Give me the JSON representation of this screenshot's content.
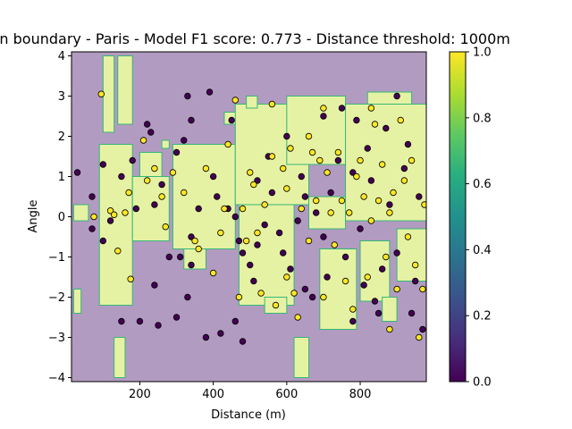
{
  "chart_data": {
    "type": "scatter",
    "title": "ion boundary - Paris - Model F1 score: 0.773 - Distance threshold: 1000m",
    "xlabel": "Distance (m)",
    "ylabel": "Angle",
    "xlim": [
      14,
      980
    ],
    "ylim": [
      -4.1,
      4.1
    ],
    "xticks": [
      200,
      400,
      600,
      800
    ],
    "yticks": [
      -4,
      -3,
      -2,
      -1,
      0,
      1,
      2,
      3,
      4
    ],
    "grid": false,
    "legend": "none",
    "colorbar": {
      "colormap": "viridis",
      "range": [
        0.0,
        1.0
      ],
      "ticks": [
        0.0,
        0.2,
        0.4,
        0.6,
        0.8,
        1.0
      ]
    },
    "colors": {
      "class0_region": "#b29bc0",
      "class1_region": "#e6f2a3",
      "boundary": "#35b779",
      "class0_point": "#440154",
      "class1_point": "#fde725"
    },
    "boundary_regions_class1": [
      [
        100,
        130,
        2.1,
        4.0
      ],
      [
        140,
        180,
        2.3,
        4.0
      ],
      [
        20,
        60,
        -0.1,
        0.3
      ],
      [
        20,
        40,
        -2.4,
        -1.8
      ],
      [
        90,
        180,
        -2.2,
        1.8
      ],
      [
        180,
        280,
        -0.6,
        1.0
      ],
      [
        200,
        260,
        1.0,
        1.6
      ],
      [
        290,
        460,
        -0.8,
        1.8
      ],
      [
        320,
        380,
        -1.3,
        -0.8
      ],
      [
        130,
        160,
        -4.0,
        -3.0
      ],
      [
        260,
        280,
        1.7,
        1.9
      ],
      [
        430,
        470,
        2.3,
        2.6
      ],
      [
        460,
        660,
        0.3,
        2.8
      ],
      [
        470,
        620,
        -2.2,
        0.3
      ],
      [
        540,
        600,
        -2.4,
        -2.0
      ],
      [
        490,
        520,
        2.7,
        3.0
      ],
      [
        600,
        760,
        1.3,
        3.0
      ],
      [
        660,
        760,
        -0.3,
        0.5
      ],
      [
        760,
        980,
        -0.1,
        2.8
      ],
      [
        820,
        940,
        2.8,
        3.1
      ],
      [
        620,
        660,
        -4.0,
        -3.0
      ],
      [
        690,
        790,
        -2.8,
        -0.8
      ],
      [
        800,
        880,
        -2.1,
        -0.6
      ],
      [
        900,
        980,
        -1.6,
        -0.3
      ],
      [
        860,
        900,
        -2.6,
        -2.0
      ]
    ],
    "points_class0": [
      [
        30,
        1.1
      ],
      [
        70,
        0.5
      ],
      [
        100,
        1.3
      ],
      [
        150,
        1.0
      ],
      [
        190,
        0.2
      ],
      [
        240,
        0.3
      ],
      [
        120,
        -0.1
      ],
      [
        70,
        -0.3
      ],
      [
        100,
        -0.6
      ],
      [
        150,
        -2.6
      ],
      [
        200,
        -2.6
      ],
      [
        250,
        -2.7
      ],
      [
        300,
        -2.5
      ],
      [
        280,
        -1.0
      ],
      [
        310,
        -1.0
      ],
      [
        330,
        -2.0
      ],
      [
        340,
        -0.5
      ],
      [
        360,
        0.2
      ],
      [
        330,
        3.0
      ],
      [
        390,
        3.1
      ],
      [
        340,
        2.4
      ],
      [
        230,
        2.1
      ],
      [
        300,
        1.6
      ],
      [
        240,
        -1.7
      ],
      [
        340,
        -1.2
      ],
      [
        400,
        1.0
      ],
      [
        410,
        0.5
      ],
      [
        440,
        0.2
      ],
      [
        450,
        2.4
      ],
      [
        460,
        0.0
      ],
      [
        470,
        -0.6
      ],
      [
        480,
        -0.9
      ],
      [
        500,
        -1.2
      ],
      [
        510,
        -1.6
      ],
      [
        520,
        -0.7
      ],
      [
        540,
        -0.2
      ],
      [
        560,
        0.6
      ],
      [
        580,
        -0.4
      ],
      [
        590,
        -0.9
      ],
      [
        610,
        -1.3
      ],
      [
        630,
        -0.1
      ],
      [
        640,
        1.0
      ],
      [
        650,
        -1.8
      ],
      [
        670,
        -2.0
      ],
      [
        680,
        0.1
      ],
      [
        700,
        -0.5
      ],
      [
        720,
        0.6
      ],
      [
        740,
        1.4
      ],
      [
        760,
        -1.0
      ],
      [
        780,
        1.1
      ],
      [
        790,
        2.4
      ],
      [
        800,
        -0.3
      ],
      [
        810,
        -1.7
      ],
      [
        830,
        0.9
      ],
      [
        840,
        -2.1
      ],
      [
        860,
        -1.3
      ],
      [
        880,
        0.3
      ],
      [
        900,
        -0.9
      ],
      [
        920,
        1.2
      ],
      [
        940,
        -2.4
      ],
      [
        950,
        -1.6
      ],
      [
        960,
        0.5
      ],
      [
        970,
        -2.8
      ],
      [
        480,
        -3.1
      ],
      [
        460,
        -2.6
      ],
      [
        420,
        -2.9
      ],
      [
        380,
        -3.0
      ],
      [
        600,
        2.0
      ],
      [
        700,
        2.5
      ],
      [
        750,
        2.7
      ],
      [
        820,
        1.7
      ],
      [
        870,
        2.2
      ],
      [
        900,
        3.0
      ],
      [
        930,
        1.8
      ],
      [
        550,
        1.5
      ],
      [
        520,
        0.9
      ],
      [
        650,
        0.5
      ],
      [
        710,
        -1.5
      ],
      [
        780,
        -2.6
      ],
      [
        850,
        -2.4
      ],
      [
        220,
        2.3
      ],
      [
        180,
        1.4
      ],
      [
        260,
        0.8
      ],
      [
        320,
        1.9
      ]
    ],
    "points_class1": [
      [
        75,
        0.0
      ],
      [
        95,
        3.05
      ],
      [
        120,
        0.15
      ],
      [
        130,
        0.05
      ],
      [
        140,
        -0.85
      ],
      [
        160,
        0.1
      ],
      [
        170,
        0.6
      ],
      [
        175,
        -1.55
      ],
      [
        210,
        1.9
      ],
      [
        220,
        0.9
      ],
      [
        240,
        1.2
      ],
      [
        260,
        0.5
      ],
      [
        270,
        -0.25
      ],
      [
        290,
        1.1
      ],
      [
        320,
        0.6
      ],
      [
        350,
        -0.6
      ],
      [
        360,
        -0.8
      ],
      [
        380,
        1.2
      ],
      [
        400,
        -1.4
      ],
      [
        420,
        -0.4
      ],
      [
        430,
        0.2
      ],
      [
        440,
        1.8
      ],
      [
        460,
        2.9
      ],
      [
        470,
        -2.0
      ],
      [
        480,
        0.2
      ],
      [
        490,
        -0.6
      ],
      [
        500,
        1.1
      ],
      [
        510,
        0.8
      ],
      [
        520,
        -0.4
      ],
      [
        530,
        -1.9
      ],
      [
        540,
        0.3
      ],
      [
        560,
        1.5
      ],
      [
        570,
        -2.2
      ],
      [
        590,
        1.2
      ],
      [
        600,
        -1.5
      ],
      [
        610,
        1.7
      ],
      [
        620,
        -1.9
      ],
      [
        630,
        -2.5
      ],
      [
        640,
        0.2
      ],
      [
        660,
        -0.6
      ],
      [
        670,
        1.6
      ],
      [
        680,
        0.4
      ],
      [
        690,
        1.4
      ],
      [
        700,
        -2.0
      ],
      [
        710,
        1.1
      ],
      [
        720,
        0.1
      ],
      [
        730,
        -0.7
      ],
      [
        740,
        1.6
      ],
      [
        750,
        0.4
      ],
      [
        760,
        -1.6
      ],
      [
        770,
        0.1
      ],
      [
        780,
        -2.3
      ],
      [
        790,
        1.0
      ],
      [
        800,
        1.4
      ],
      [
        810,
        0.5
      ],
      [
        820,
        -1.5
      ],
      [
        830,
        -0.1
      ],
      [
        840,
        2.3
      ],
      [
        850,
        0.4
      ],
      [
        860,
        1.3
      ],
      [
        870,
        -1.0
      ],
      [
        880,
        0.1
      ],
      [
        890,
        0.6
      ],
      [
        900,
        -1.8
      ],
      [
        910,
        2.4
      ],
      [
        920,
        0.9
      ],
      [
        930,
        -0.5
      ],
      [
        940,
        1.4
      ],
      [
        950,
        -1.2
      ],
      [
        960,
        -3.0
      ],
      [
        970,
        -1.8
      ],
      [
        975,
        0.3
      ],
      [
        880,
        -2.8
      ],
      [
        560,
        2.8
      ],
      [
        700,
        2.7
      ],
      [
        830,
        2.7
      ],
      [
        660,
        2.0
      ],
      [
        600,
        0.7
      ]
    ]
  }
}
